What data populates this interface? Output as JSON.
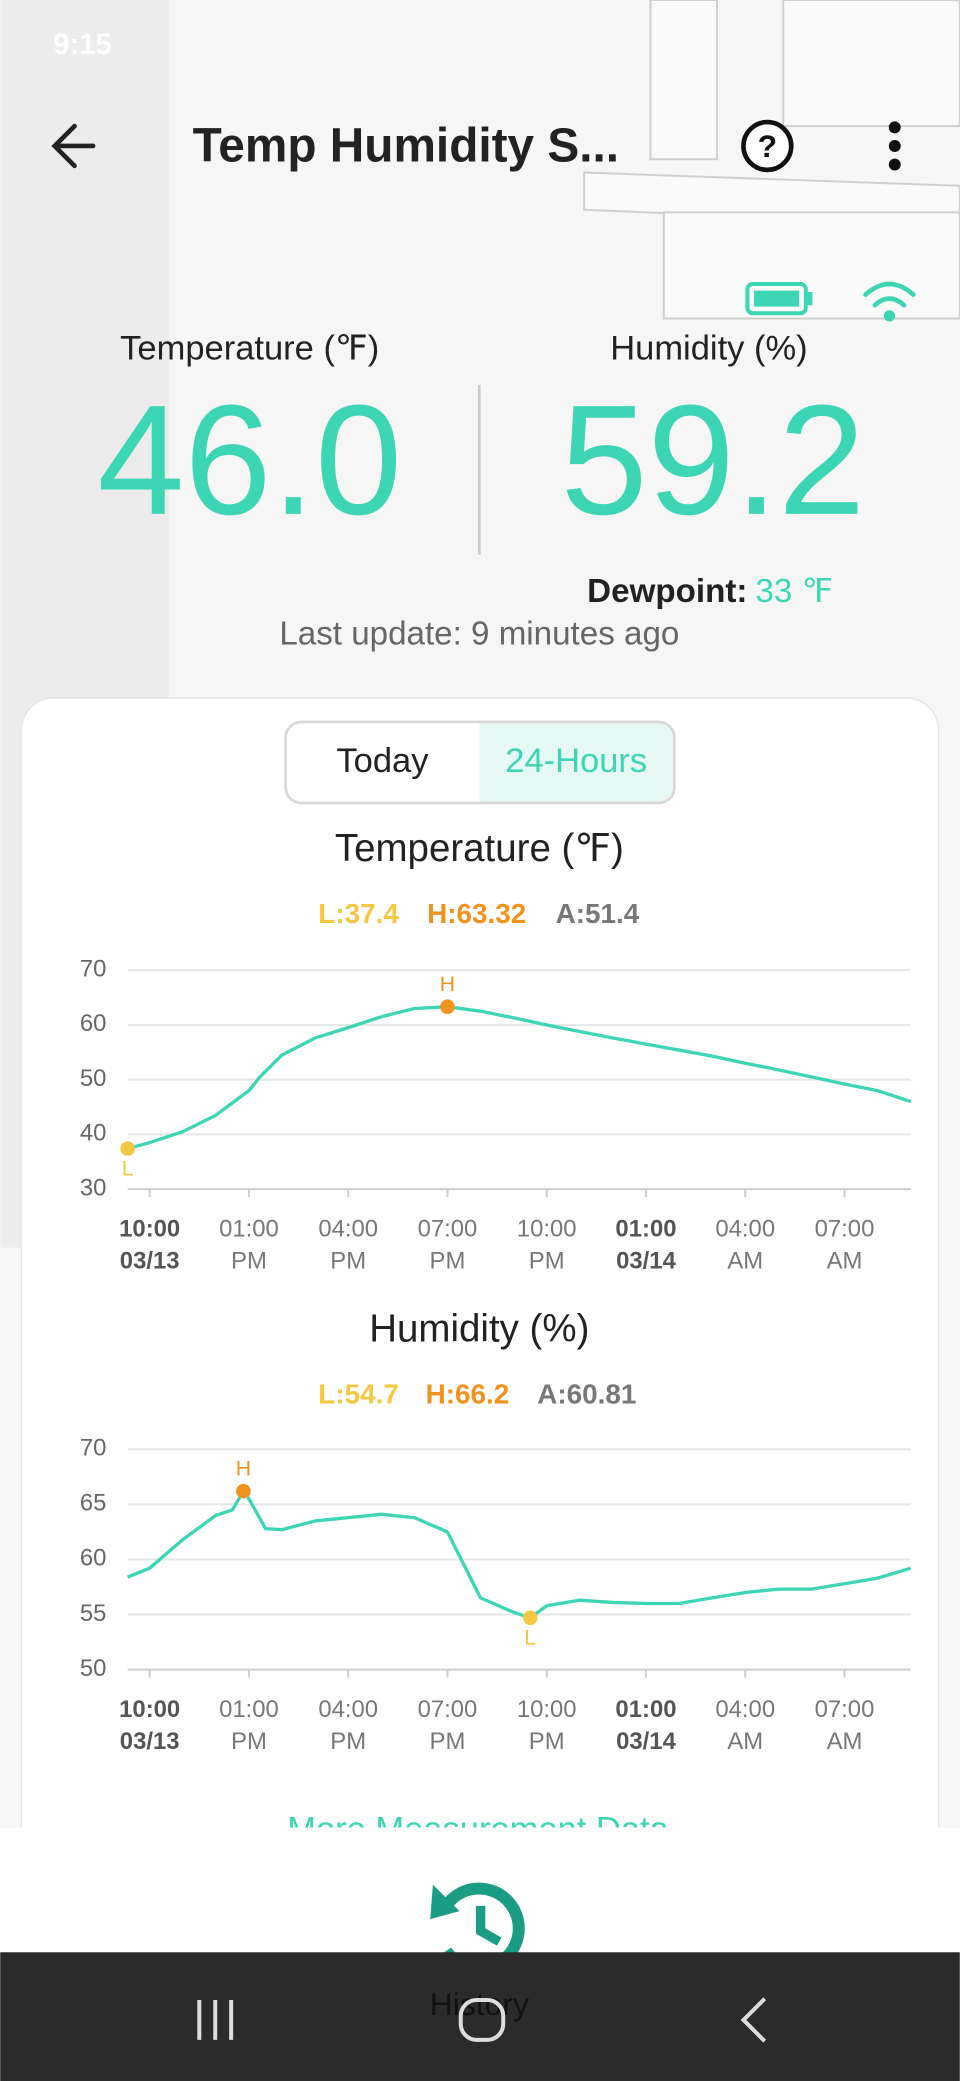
{
  "status_bar": {
    "time": "9:15"
  },
  "header": {
    "title": "Temp Humidity S..."
  },
  "readings": {
    "temperature_label": "Temperature (℉)",
    "temperature": "46.0",
    "humidity_label": "Humidity (%)",
    "humidity": "59.2",
    "dewpoint_label": "Dewpoint:",
    "dewpoint": "33 ℉",
    "last_update": "Last update: 9 minutes ago"
  },
  "tabs": [
    "Today",
    "24-Hours"
  ],
  "chart_data": [
    {
      "type": "line",
      "title": "Temperature (℉)",
      "color": "#3dd6b5",
      "stats": {
        "low": "L:37.4",
        "high": "H:63.32",
        "avg": "A:51.4"
      },
      "high_marker": "H",
      "low_marker": "L",
      "x": [
        "03/13 09:20",
        "03/13 10:00",
        "03/13 11:00",
        "03/13 12:00",
        "03/13 12:40",
        "03/13 13:00",
        "03/13 13:20",
        "03/13 14:00",
        "03/13 15:00",
        "03/13 16:00",
        "03/13 17:00",
        "03/13 18:00",
        "03/13 19:00",
        "03/13 20:00",
        "03/13 21:00",
        "03/13 22:00",
        "03/13 23:00",
        "03/14 00:00",
        "03/14 01:00",
        "03/14 02:00",
        "03/14 03:00",
        "03/14 04:00",
        "03/14 05:00",
        "03/14 06:00",
        "03/14 07:00",
        "03/14 08:00",
        "03/14 09:00"
      ],
      "values": [
        37.4,
        38.5,
        40.5,
        43.5,
        46.5,
        48,
        50.5,
        54.5,
        57.6,
        59.5,
        61.5,
        63,
        63.32,
        62.5,
        61.3,
        60,
        58.8,
        57.6,
        56.5,
        55.4,
        54.3,
        53,
        51.8,
        50.5,
        49.2,
        48,
        46
      ],
      "xlim": [
        "03/13 09:20",
        "03/14 09:00"
      ],
      "ylim": [
        30,
        70
      ],
      "yticks": [
        30,
        40,
        50,
        60,
        70
      ],
      "xticks": [
        {
          "value": "03/13 10:00",
          "label": [
            "10:00",
            "03/13"
          ]
        },
        {
          "value": "03/13 13:00",
          "label": [
            "01:00",
            "PM"
          ]
        },
        {
          "value": "03/13 16:00",
          "label": [
            "04:00",
            "PM"
          ]
        },
        {
          "value": "03/13 19:00",
          "label": [
            "07:00",
            "PM"
          ]
        },
        {
          "value": "03/13 22:00",
          "label": [
            "10:00",
            "PM"
          ]
        },
        {
          "value": "03/14 01:00",
          "label": [
            "01:00",
            "03/14"
          ]
        },
        {
          "value": "03/14 04:00",
          "label": [
            "04:00",
            "AM"
          ]
        },
        {
          "value": "03/14 07:00",
          "label": [
            "07:00",
            "AM"
          ]
        }
      ],
      "grid": true
    },
    {
      "type": "line",
      "title": "Humidity (%)",
      "color": "#3dd6b5",
      "stats": {
        "low": "L:54.7",
        "high": "H:66.2",
        "avg": "A:60.81"
      },
      "high_marker": "H",
      "low_marker": "L",
      "x": [
        "03/13 09:20",
        "03/13 10:00",
        "03/13 11:00",
        "03/13 12:00",
        "03/13 12:30",
        "03/13 12:50",
        "03/13 13:00",
        "03/13 13:30",
        "03/13 14:00",
        "03/13 15:00",
        "03/13 16:00",
        "03/13 17:00",
        "03/13 18:00",
        "03/13 19:00",
        "03/13 20:00",
        "03/13 21:00",
        "03/13 21:30",
        "03/13 22:00",
        "03/13 23:00",
        "03/14 00:00",
        "03/14 01:00",
        "03/14 02:00",
        "03/14 03:00",
        "03/14 04:00",
        "03/14 05:00",
        "03/14 06:00",
        "03/14 07:00",
        "03/14 08:00",
        "03/14 09:00"
      ],
      "values": [
        58.4,
        59.2,
        61.8,
        64,
        64.5,
        66.2,
        65.5,
        62.8,
        62.7,
        63.5,
        63.8,
        64.1,
        63.8,
        62.5,
        56.5,
        55.2,
        54.7,
        55.8,
        56.3,
        56.1,
        56,
        56,
        56.5,
        57,
        57.3,
        57.3,
        57.8,
        58.3,
        59.2
      ],
      "xlim": [
        "03/13 09:20",
        "03/14 09:00"
      ],
      "ylim": [
        50,
        70
      ],
      "yticks": [
        50,
        55,
        60,
        65,
        70
      ],
      "xticks": [
        {
          "value": "03/13 10:00",
          "label": [
            "10:00",
            "03/13"
          ]
        },
        {
          "value": "03/13 13:00",
          "label": [
            "01:00",
            "PM"
          ]
        },
        {
          "value": "03/13 16:00",
          "label": [
            "04:00",
            "PM"
          ]
        },
        {
          "value": "03/13 19:00",
          "label": [
            "07:00",
            "PM"
          ]
        },
        {
          "value": "03/13 22:00",
          "label": [
            "10:00",
            "PM"
          ]
        },
        {
          "value": "03/14 01:00",
          "label": [
            "01:00",
            "03/14"
          ]
        },
        {
          "value": "03/14 04:00",
          "label": [
            "04:00",
            "AM"
          ]
        },
        {
          "value": "03/14 07:00",
          "label": [
            "07:00",
            "AM"
          ]
        }
      ],
      "grid": true
    }
  ],
  "more_link": "More Measurement Data",
  "bottom": {
    "history": "History"
  }
}
